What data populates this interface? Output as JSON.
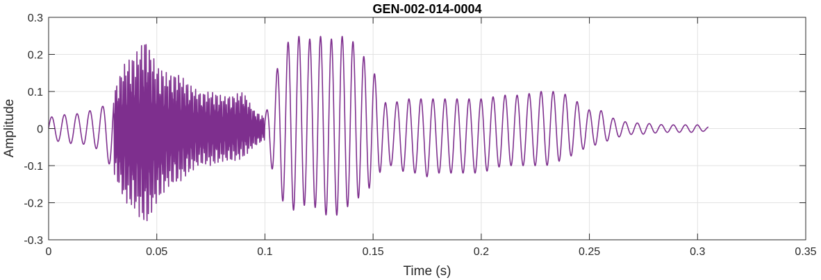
{
  "chart_data": {
    "type": "line",
    "title": "GEN-002-014-0004",
    "xlabel": "Time (s)",
    "ylabel": "Amplitude",
    "xlim": [
      0,
      0.35
    ],
    "ylim": [
      -0.3,
      0.3
    ],
    "xticks": [
      0,
      0.05,
      0.1,
      0.15,
      0.2,
      0.25,
      0.3,
      0.35
    ],
    "xtick_labels": [
      "0",
      "0.05",
      "0.1",
      "0.15",
      "0.2",
      "0.25",
      "0.3",
      "0.35"
    ],
    "yticks": [
      -0.3,
      -0.2,
      -0.1,
      0,
      0.1,
      0.2,
      0.3
    ],
    "ytick_labels": [
      "-0.3",
      "-0.2",
      "-0.1",
      "0",
      "0.1",
      "0.2",
      "0.3"
    ],
    "grid": true,
    "line_color": "#7E2F8E",
    "series": [
      {
        "x": [
          0,
          0.005,
          0.01,
          0.015,
          0.02,
          0.025,
          0.03,
          0.035,
          0.04,
          0.045,
          0.05,
          0.055,
          0.06,
          0.065,
          0.07,
          0.075,
          0.08,
          0.085,
          0.09,
          0.095,
          0.1,
          0.105,
          0.11,
          0.115,
          0.12,
          0.125,
          0.13,
          0.135,
          0.14,
          0.145,
          0.15,
          0.155,
          0.16,
          0.165,
          0.17,
          0.175,
          0.18,
          0.185,
          0.19,
          0.195,
          0.2,
          0.205,
          0.21,
          0.215,
          0.22,
          0.225,
          0.23,
          0.235,
          0.24,
          0.245,
          0.25,
          0.255,
          0.26,
          0.265,
          0.27,
          0.275,
          0.28,
          0.285,
          0.29,
          0.295,
          0.3,
          0.305
        ],
        "y_max": [
          0.03,
          0.035,
          0.04,
          0.04,
          0.05,
          0.06,
          0.1,
          0.18,
          0.2,
          0.25,
          0.17,
          0.15,
          0.15,
          0.12,
          0.1,
          0.1,
          0.09,
          0.09,
          0.1,
          0.05,
          0.03,
          0.15,
          0.23,
          0.25,
          0.24,
          0.25,
          0.24,
          0.25,
          0.24,
          0.2,
          0.16,
          0.07,
          0.07,
          0.08,
          0.08,
          0.08,
          0.08,
          0.08,
          0.08,
          0.08,
          0.08,
          0.085,
          0.09,
          0.09,
          0.09,
          0.1,
          0.1,
          0.1,
          0.09,
          0.07,
          0.05,
          0.05,
          0.03,
          0.02,
          0.015,
          0.015,
          0.012,
          0.01,
          0.01,
          0.01,
          0.01,
          0.005
        ],
        "y_min": [
          -0.03,
          -0.035,
          -0.04,
          -0.04,
          -0.05,
          -0.06,
          -0.12,
          -0.2,
          -0.22,
          -0.27,
          -0.2,
          -0.16,
          -0.15,
          -0.12,
          -0.1,
          -0.1,
          -0.09,
          -0.09,
          -0.08,
          -0.05,
          -0.03,
          -0.15,
          -0.22,
          -0.22,
          -0.2,
          -0.22,
          -0.24,
          -0.23,
          -0.2,
          -0.18,
          -0.15,
          -0.1,
          -0.1,
          -0.12,
          -0.12,
          -0.13,
          -0.12,
          -0.12,
          -0.12,
          -0.12,
          -0.12,
          -0.11,
          -0.1,
          -0.1,
          -0.1,
          -0.1,
          -0.1,
          -0.09,
          -0.08,
          -0.06,
          -0.05,
          -0.04,
          -0.03,
          -0.02,
          -0.015,
          -0.015,
          -0.012,
          -0.01,
          -0.01,
          -0.01,
          -0.01,
          -0.005
        ]
      }
    ]
  }
}
